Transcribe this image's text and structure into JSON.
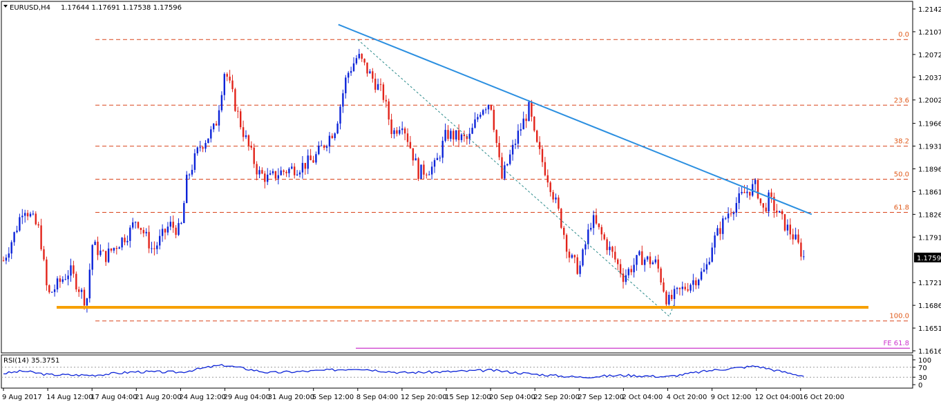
{
  "header": {
    "symbol": "EURUSD,H4",
    "quote": "1.17644 1.17691 1.17538 1.17596"
  },
  "colors": {
    "bull": "#0b23d8",
    "bear": "#e2231a",
    "trendline": "#2b8fe0",
    "support": "#f7a000",
    "fib": "#d9431a",
    "fe": "#cc33cc",
    "rsi": "#0b23d8"
  },
  "chart_data": {
    "type": "candlestick",
    "instrument": "EURUSD",
    "timeframe": "H4",
    "y_ticks": [
      "1.21420",
      "1.21070",
      "1.20720",
      "1.20370",
      "1.20020",
      "1.19660",
      "1.19310",
      "1.18960",
      "1.18610",
      "1.18260",
      "1.17910",
      "1.17210",
      "1.16860",
      "1.16510",
      "1.16160"
    ],
    "current_price": "1.17596",
    "x_ticks": [
      "9 Aug 2017",
      "14 Aug 12:00",
      "17 Aug 04:00",
      "21 Aug 20:00",
      "24 Aug 12:00",
      "29 Aug 04:00",
      "31 Aug 20:00",
      "5 Sep 12:00",
      "8 Sep 04:00",
      "12 Sep 20:00",
      "15 Sep 12:00",
      "20 Sep 04:00",
      "22 Sep 20:00",
      "27 Sep 12:00",
      "2 Oct 04:00",
      "4 Oct 20:00",
      "9 Oct 12:00",
      "12 Oct 04:00",
      "16 Oct 20:00"
    ],
    "fib_levels": [
      {
        "label": "0.0",
        "price": 1.2095
      },
      {
        "label": "23.6",
        "price": 1.1994
      },
      {
        "label": "38.2",
        "price": 1.1931
      },
      {
        "label": "50.0",
        "price": 1.188
      },
      {
        "label": "61.8",
        "price": 1.1829
      },
      {
        "label": "100.0",
        "price": 1.1662
      }
    ],
    "fe_level": {
      "label": "FE 61.8",
      "price": 1.162
    },
    "support_line": {
      "price": 1.1683
    },
    "resistance_trendline": {
      "start": {
        "date": "7 Sep 2017",
        "price": 1.2118
      },
      "end": {
        "date": "18 Oct 2017",
        "price": 1.1826
      }
    },
    "swing_leg": [
      {
        "date": "8 Sep 04:00",
        "price": 1.2095
      },
      {
        "date": "5 Oct 00:00",
        "price": 1.1669
      },
      {
        "date": "5 Oct 12:00",
        "price": 1.1688
      }
    ],
    "price_path": [
      {
        "date": "9 Aug 2017",
        "price": 1.1755
      },
      {
        "date": "10 Aug 12:00",
        "price": 1.18
      },
      {
        "date": "11 Aug 12:00",
        "price": 1.184
      },
      {
        "date": "13 Aug 12:00",
        "price": 1.18
      },
      {
        "date": "14 Aug 12:00",
        "price": 1.17
      },
      {
        "date": "15 Aug 20:00",
        "price": 1.174
      },
      {
        "date": "16 Aug 20:00",
        "price": 1.169
      },
      {
        "date": "17 Aug 04:00",
        "price": 1.178
      },
      {
        "date": "18 Aug 12:00",
        "price": 1.176
      },
      {
        "date": "21 Aug 04:00",
        "price": 1.18
      },
      {
        "date": "21 Aug 20:00",
        "price": 1.182
      },
      {
        "date": "22 Aug 20:00",
        "price": 1.177
      },
      {
        "date": "23 Aug 20:00",
        "price": 1.181
      },
      {
        "date": "24 Aug 12:00",
        "price": 1.18
      },
      {
        "date": "25 Aug 04:00",
        "price": 1.188
      },
      {
        "date": "26 Aug 12:00",
        "price": 1.193
      },
      {
        "date": "28 Aug 04:00",
        "price": 1.196
      },
      {
        "date": "29 Aug 04:00",
        "price": 1.205
      },
      {
        "date": "30 Aug 04:00",
        "price": 1.196
      },
      {
        "date": "31 Aug 04:00",
        "price": 1.189
      },
      {
        "date": "31 Aug 20:00",
        "price": 1.188
      },
      {
        "date": "1 Sep 20:00",
        "price": 1.189
      },
      {
        "date": "4 Sep 04:00",
        "price": 1.19
      },
      {
        "date": "5 Sep 12:00",
        "price": 1.191
      },
      {
        "date": "6 Sep 20:00",
        "price": 1.196
      },
      {
        "date": "7 Sep 12:00",
        "price": 1.204
      },
      {
        "date": "8 Sep 04:00",
        "price": 1.207
      },
      {
        "date": "10 Sep 20:00",
        "price": 1.201
      },
      {
        "date": "11 Sep 20:00",
        "price": 1.195
      },
      {
        "date": "12 Sep 20:00",
        "price": 1.197
      },
      {
        "date": "13 Sep 20:00",
        "price": 1.189
      },
      {
        "date": "14 Sep 20:00",
        "price": 1.19
      },
      {
        "date": "15 Sep 12:00",
        "price": 1.195
      },
      {
        "date": "17 Sep 20:00",
        "price": 1.194
      },
      {
        "date": "19 Sep 04:00",
        "price": 1.199
      },
      {
        "date": "20 Sep 04:00",
        "price": 1.2
      },
      {
        "date": "20 Sep 20:00",
        "price": 1.188
      },
      {
        "date": "21 Sep 20:00",
        "price": 1.195
      },
      {
        "date": "22 Sep 12:00",
        "price": 1.199
      },
      {
        "date": "22 Sep 20:00",
        "price": 1.194
      },
      {
        "date": "24 Sep 12:00",
        "price": 1.187
      },
      {
        "date": "25 Sep 12:00",
        "price": 1.182
      },
      {
        "date": "26 Sep 12:00",
        "price": 1.176
      },
      {
        "date": "27 Sep 12:00",
        "price": 1.174
      },
      {
        "date": "28 Sep 04:00",
        "price": 1.178
      },
      {
        "date": "28 Sep 20:00",
        "price": 1.182
      },
      {
        "date": "1 Oct 04:00",
        "price": 1.176
      },
      {
        "date": "2 Oct 04:00",
        "price": 1.173
      },
      {
        "date": "3 Oct 04:00",
        "price": 1.176
      },
      {
        "date": "4 Oct 04:00",
        "price": 1.175
      },
      {
        "date": "4 Oct 20:00",
        "price": 1.169
      },
      {
        "date": "5 Oct 12:00",
        "price": 1.17
      },
      {
        "date": "8 Oct 20:00",
        "price": 1.174
      },
      {
        "date": "9 Oct 12:00",
        "price": 1.178
      },
      {
        "date": "10 Oct 12:00",
        "price": 1.183
      },
      {
        "date": "11 Oct 12:00",
        "price": 1.186
      },
      {
        "date": "12 Oct 04:00",
        "price": 1.187
      },
      {
        "date": "12 Oct 20:00",
        "price": 1.183
      },
      {
        "date": "13 Oct 12:00",
        "price": 1.185
      },
      {
        "date": "15 Oct 04:00",
        "price": 1.181
      },
      {
        "date": "16 Oct 04:00",
        "price": 1.179
      },
      {
        "date": "16 Oct 20:00",
        "price": 1.177
      },
      {
        "date": "17 Oct 04:00",
        "price": 1.176
      }
    ],
    "rsi": {
      "label": "RSI(14) 35.3751",
      "value": 35.3751,
      "levels": [
        "100",
        "70",
        "30",
        "0"
      ],
      "path": [
        {
          "date": "9 Aug 2017",
          "value": 45
        },
        {
          "date": "11 Aug 12:00",
          "value": 55
        },
        {
          "date": "14 Aug 12:00",
          "value": 40
        },
        {
          "date": "17 Aug 04:00",
          "value": 38
        },
        {
          "date": "21 Aug 20:00",
          "value": 52
        },
        {
          "date": "24 Aug 12:00",
          "value": 50
        },
        {
          "date": "28 Aug 04:00",
          "value": 75
        },
        {
          "date": "29 Aug 04:00",
          "value": 78
        },
        {
          "date": "31 Aug 20:00",
          "value": 48
        },
        {
          "date": "5 Sep 12:00",
          "value": 55
        },
        {
          "date": "8 Sep 04:00",
          "value": 65
        },
        {
          "date": "12 Sep 20:00",
          "value": 48
        },
        {
          "date": "15 Sep 12:00",
          "value": 52
        },
        {
          "date": "20 Sep 04:00",
          "value": 58
        },
        {
          "date": "22 Sep 20:00",
          "value": 42
        },
        {
          "date": "27 Sep 12:00",
          "value": 30
        },
        {
          "date": "2 Oct 04:00",
          "value": 38
        },
        {
          "date": "4 Oct 20:00",
          "value": 32
        },
        {
          "date": "9 Oct 12:00",
          "value": 58
        },
        {
          "date": "12 Oct 04:00",
          "value": 75
        },
        {
          "date": "14 Oct 12:00",
          "value": 55
        },
        {
          "date": "17 Oct 04:00",
          "value": 35
        }
      ]
    }
  }
}
